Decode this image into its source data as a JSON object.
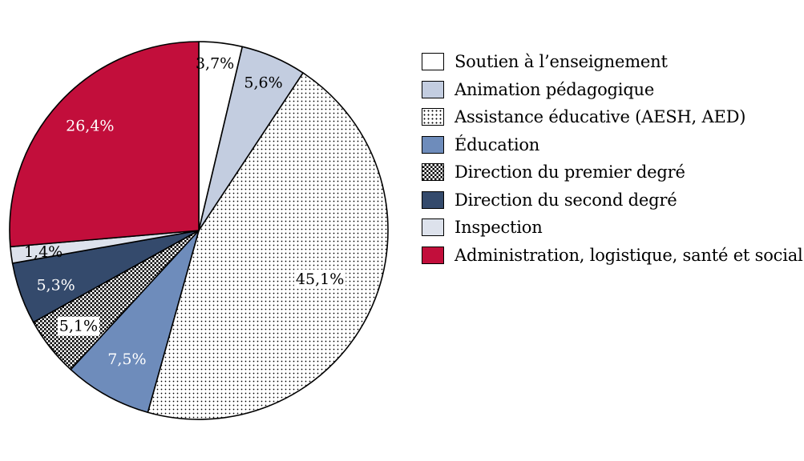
{
  "chart_data": {
    "type": "pie",
    "title": "",
    "unit": "%",
    "slices": [
      {
        "label": "Soutien à l’enseignement",
        "value": 3.7,
        "value_label": "3,7%",
        "fill": "#ffffff",
        "pattern": "none",
        "text_color": "#000000"
      },
      {
        "label": "Animation pédagogique",
        "value": 5.6,
        "value_label": "5,6%",
        "fill": "#c3cde0",
        "pattern": "none",
        "text_color": "#000000"
      },
      {
        "label": "Assistance éducative (AESH, AED)",
        "value": 45.1,
        "value_label": "45,1%",
        "fill": "#ffffff",
        "pattern": "dots",
        "text_color": "#000000"
      },
      {
        "label": "Éducation",
        "value": 7.5,
        "value_label": "7,5%",
        "fill": "#6e8cbb",
        "pattern": "none",
        "text_color": "#ffffff"
      },
      {
        "label": "Direction du premier degré",
        "value": 5.1,
        "value_label": "5,1%",
        "fill": "#ffffff",
        "pattern": "checker",
        "text_color": "#000000"
      },
      {
        "label": "Direction du second degré",
        "value": 5.3,
        "value_label": "5,3%",
        "fill": "#344a6c",
        "pattern": "none",
        "text_color": "#ffffff"
      },
      {
        "label": "Inspection",
        "value": 1.4,
        "value_label": "1,4%",
        "fill": "#dde2ec",
        "pattern": "none",
        "text_color": "#000000"
      },
      {
        "label": "Administration, logistique, santé et social",
        "value": 26.4,
        "value_label": "26,4%",
        "fill": "#c20e3b",
        "pattern": "none",
        "text_color": "#ffffff"
      }
    ],
    "start_angle": "12 o'clock",
    "direction": "clockwise",
    "legend_position": "right"
  }
}
